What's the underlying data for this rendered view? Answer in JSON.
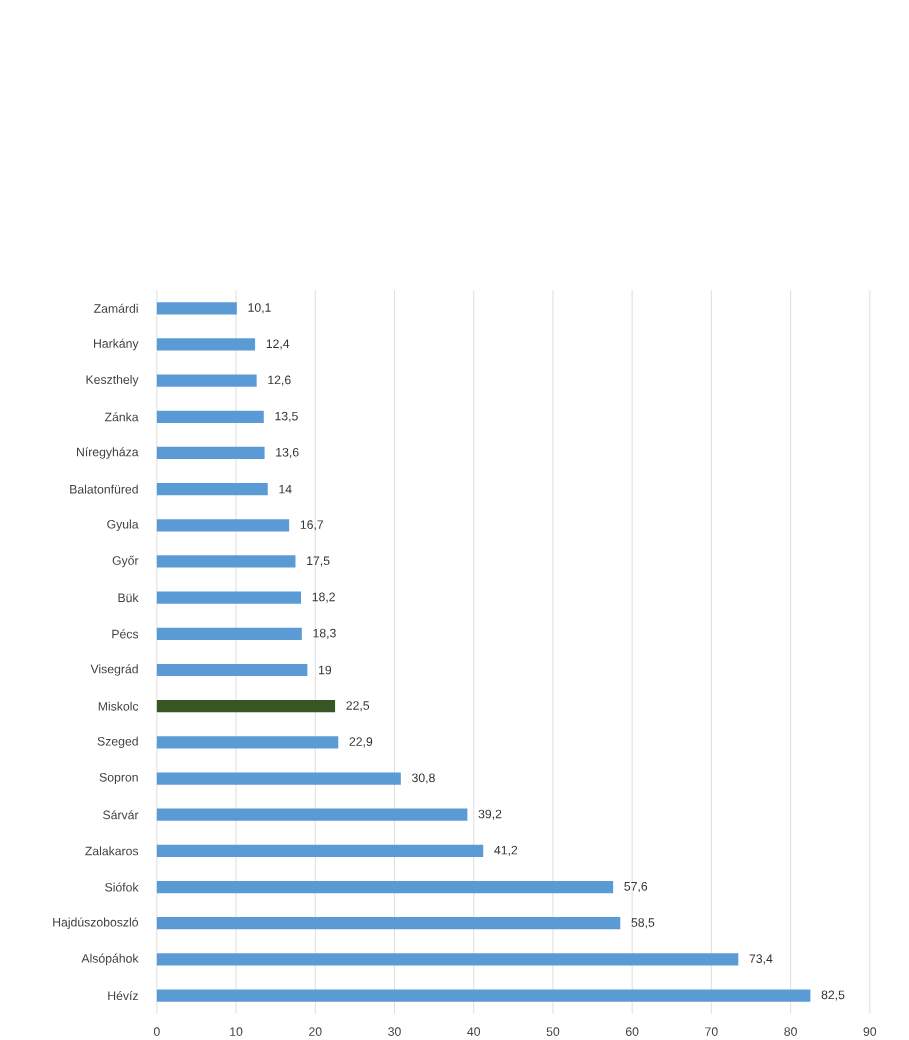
{
  "chart_data": {
    "type": "bar",
    "orientation": "horizontal",
    "categories": [
      "Zamárdi",
      "Harkány",
      "Keszthely",
      "Zánka",
      "Níregyháza",
      "Balatonfüred",
      "Gyula",
      "Győr",
      "Bük",
      "Pécs",
      "Visegrád",
      "Miskolc",
      "Szeged",
      "Sopron",
      "Sárvár",
      "Zalakaros",
      "Siófok",
      "Hajdúszoboszló",
      "Alsópáhok",
      "Hévíz"
    ],
    "values": [
      10.1,
      12.4,
      12.6,
      13.5,
      13.6,
      14,
      16.7,
      17.5,
      18.2,
      18.3,
      19,
      22.5,
      22.9,
      30.8,
      39.2,
      41.2,
      57.6,
      58.5,
      73.4,
      82.5
    ],
    "value_labels": [
      "10,1",
      "12,4",
      "12,6",
      "13,5",
      "13,6",
      "14",
      "16,7",
      "17,5",
      "18,2",
      "18,3",
      "19",
      "22,5",
      "22,9",
      "30,8",
      "39,2",
      "41,2",
      "57,6",
      "58,5",
      "73,4",
      "82,5"
    ],
    "colors": [
      "#5b9bd5",
      "#5b9bd5",
      "#5b9bd5",
      "#5b9bd5",
      "#5b9bd5",
      "#5b9bd5",
      "#5b9bd5",
      "#5b9bd5",
      "#5b9bd5",
      "#5b9bd5",
      "#5b9bd5",
      "#375623",
      "#5b9bd5",
      "#5b9bd5",
      "#5b9bd5",
      "#5b9bd5",
      "#5b9bd5",
      "#5b9bd5",
      "#5b9bd5",
      "#5b9bd5"
    ],
    "xlim": [
      0,
      90
    ],
    "xticks": [
      0,
      10,
      20,
      30,
      40,
      50,
      60,
      70,
      80,
      90
    ],
    "grid": "x"
  }
}
